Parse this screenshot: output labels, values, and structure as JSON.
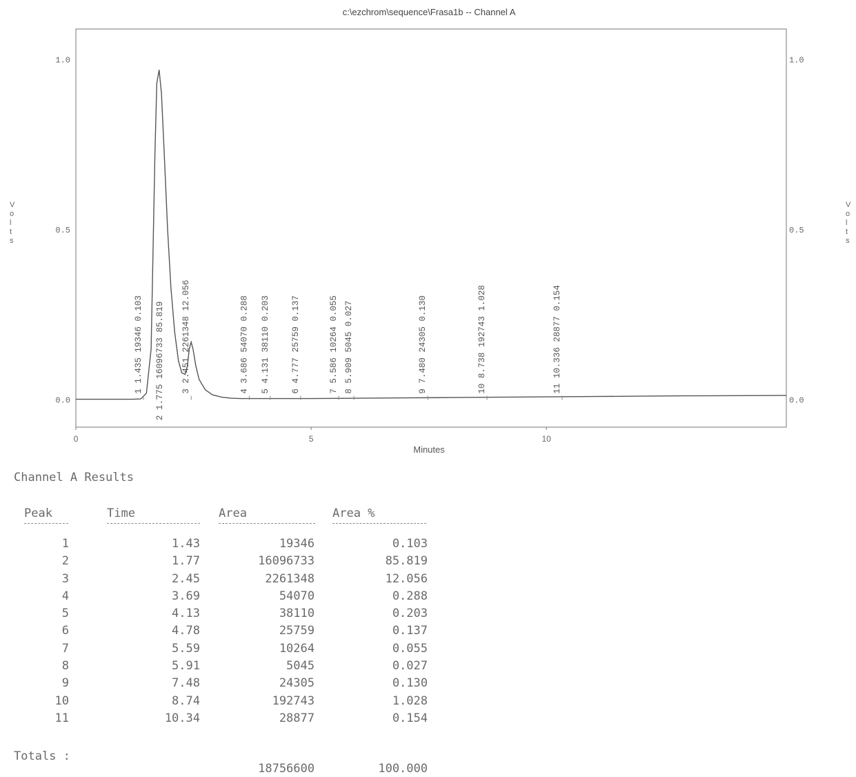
{
  "chart_data": {
    "type": "line",
    "title": "c:\\ezchrom\\sequence\\Frasa1b -- Channel A",
    "xlabel": "Minutes",
    "ylabel": "V o l t s",
    "ylabel_right": "V o l t s",
    "xlim": [
      0,
      15.1
    ],
    "ylim": [
      -0.08,
      1.09
    ],
    "x_ticks": [
      0,
      5,
      10
    ],
    "y_ticks": [
      0.0,
      0.5,
      1.0
    ],
    "y_tick_labels": [
      "0.0",
      "0.5",
      "1.0"
    ],
    "grid": false,
    "series": [
      {
        "x": [
          0,
          1.2,
          1.38,
          1.43,
          1.5,
          1.6,
          1.68,
          1.72,
          1.77,
          1.82,
          1.88,
          1.95,
          2.02,
          2.1,
          2.18,
          2.25,
          2.32,
          2.37,
          2.41,
          2.45,
          2.49,
          2.55,
          2.62,
          2.75,
          2.9,
          3.1,
          3.3,
          3.5,
          4.0,
          5.0,
          6.0,
          7.0,
          8.0,
          9.0,
          10.0,
          11.0,
          12.0,
          13.0,
          15.1
        ],
        "y": [
          0.002,
          0.002,
          0.003,
          0.01,
          0.02,
          0.15,
          0.72,
          0.93,
          0.97,
          0.9,
          0.72,
          0.5,
          0.33,
          0.2,
          0.115,
          0.08,
          0.075,
          0.1,
          0.15,
          0.17,
          0.15,
          0.1,
          0.06,
          0.03,
          0.015,
          0.008,
          0.005,
          0.004,
          0.004,
          0.004,
          0.005,
          0.006,
          0.007,
          0.008,
          0.009,
          0.01,
          0.011,
          0.012,
          0.013
        ]
      }
    ],
    "peak_labels": [
      {
        "text": "1 1.435 19346 0.103",
        "x": 1.435
      },
      {
        "text": "2 1.775 16096733 85.819",
        "x": 1.775
      },
      {
        "text": "3 2.451 2261348 12.056",
        "x": 2.451
      },
      {
        "text": "4 3.686 54070 0.288",
        "x": 3.686
      },
      {
        "text": "5 4.131 38110 0.203",
        "x": 4.131
      },
      {
        "text": "6 4.777 25759 0.137",
        "x": 4.777
      },
      {
        "text": "7 5.586 10264 0.055",
        "x": 5.586
      },
      {
        "text": "8 5.909 5045 0.027",
        "x": 5.909
      },
      {
        "text": "9 7.480 24305 0.130",
        "x": 7.48
      },
      {
        "text": "10 8.738 192743 1.028",
        "x": 8.738
      },
      {
        "text": "11 10.336 28877 0.154",
        "x": 10.336
      }
    ]
  },
  "results": {
    "title": "Channel A Results",
    "headers": {
      "peak": "Peak",
      "time": "Time",
      "area": "Area",
      "pct": "Area %"
    },
    "rows": [
      {
        "peak": "1",
        "time": "1.43",
        "area": "19346",
        "pct": "0.103"
      },
      {
        "peak": "2",
        "time": "1.77",
        "area": "16096733",
        "pct": "85.819"
      },
      {
        "peak": "3",
        "time": "2.45",
        "area": "2261348",
        "pct": "12.056"
      },
      {
        "peak": "4",
        "time": "3.69",
        "area": "54070",
        "pct": "0.288"
      },
      {
        "peak": "5",
        "time": "4.13",
        "area": "38110",
        "pct": "0.203"
      },
      {
        "peak": "6",
        "time": "4.78",
        "area": "25759",
        "pct": "0.137"
      },
      {
        "peak": "7",
        "time": "5.59",
        "area": "10264",
        "pct": "0.055"
      },
      {
        "peak": "8",
        "time": "5.91",
        "area": "5045",
        "pct": "0.027"
      },
      {
        "peak": "9",
        "time": "7.48",
        "area": "24305",
        "pct": "0.130"
      },
      {
        "peak": "10",
        "time": "8.74",
        "area": "192743",
        "pct": "1.028"
      },
      {
        "peak": "11",
        "time": "10.34",
        "area": "28877",
        "pct": "0.154"
      }
    ],
    "totals_label": "Totals :",
    "totals_area": "18756600",
    "totals_pct": "100.000"
  }
}
